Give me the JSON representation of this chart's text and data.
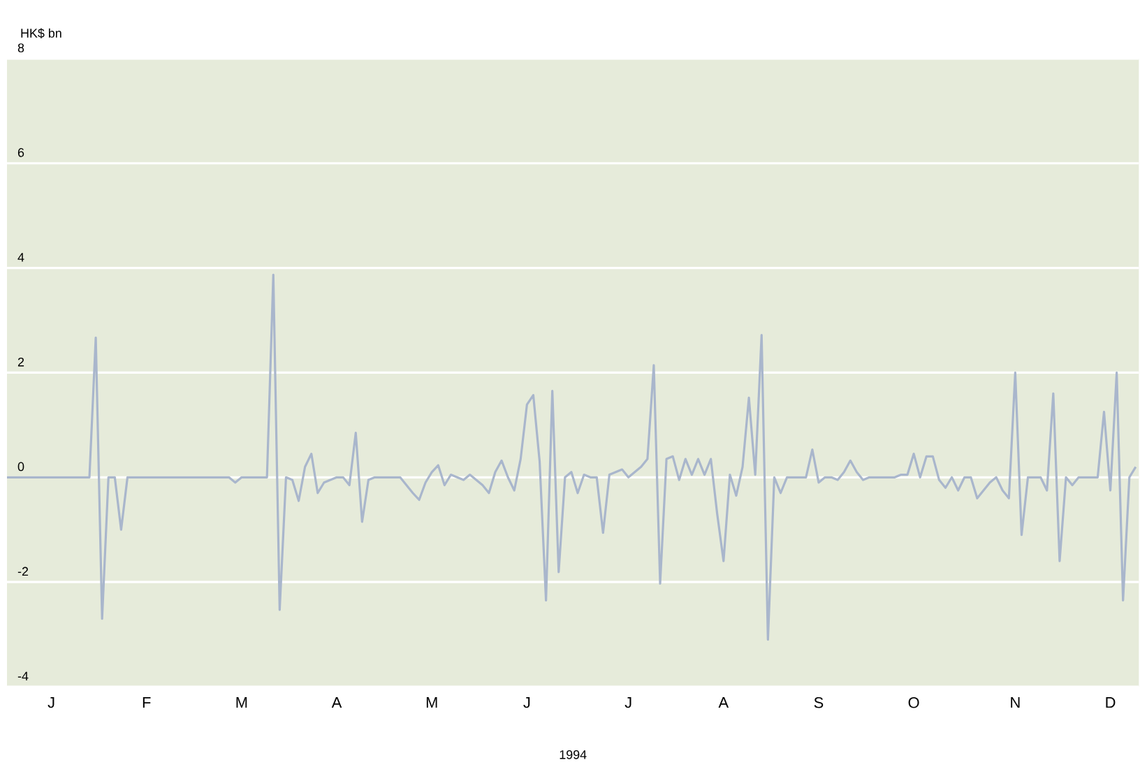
{
  "chart_data": {
    "type": "line",
    "ylabel": "HK$ bn",
    "xlabel": "1994",
    "color": "#a9b6cc",
    "grid": "y",
    "marker": "none",
    "line_style": "solid",
    "ylim": [
      -4,
      8
    ],
    "yticks": [
      -4,
      -2,
      0,
      2,
      4,
      6,
      8
    ],
    "categories": [
      null,
      null,
      null,
      null,
      null,
      null,
      null,
      "J",
      null,
      null,
      null,
      null,
      null,
      null,
      null,
      null,
      null,
      null,
      null,
      null,
      null,
      null,
      "F",
      null,
      null,
      null,
      null,
      null,
      null,
      null,
      null,
      null,
      null,
      null,
      null,
      null,
      null,
      "M",
      null,
      null,
      null,
      null,
      null,
      null,
      null,
      null,
      null,
      null,
      null,
      null,
      null,
      null,
      "A",
      null,
      null,
      null,
      null,
      null,
      null,
      null,
      null,
      null,
      null,
      null,
      null,
      null,
      null,
      "M",
      null,
      null,
      null,
      null,
      null,
      null,
      null,
      null,
      null,
      null,
      null,
      null,
      null,
      null,
      "J",
      null,
      null,
      null,
      null,
      null,
      null,
      null,
      null,
      null,
      null,
      null,
      null,
      null,
      null,
      null,
      "J",
      null,
      null,
      null,
      null,
      null,
      null,
      null,
      null,
      null,
      null,
      null,
      null,
      null,
      null,
      "A",
      null,
      null,
      null,
      null,
      null,
      null,
      null,
      null,
      null,
      null,
      null,
      null,
      null,
      null,
      "S",
      null,
      null,
      null,
      null,
      null,
      null,
      null,
      null,
      null,
      null,
      null,
      null,
      null,
      null,
      "O",
      null,
      null,
      null,
      null,
      null,
      null,
      null,
      null,
      null,
      null,
      null,
      null,
      null,
      null,
      null,
      "N",
      null,
      null,
      null,
      null,
      null,
      null,
      null,
      null,
      null,
      null,
      null,
      null,
      null,
      null,
      "D",
      null,
      null,
      null,
      null
    ],
    "values": [
      0,
      0,
      0,
      0,
      0,
      0,
      0,
      0,
      0,
      0,
      0,
      0,
      0,
      0,
      2.67,
      -2.7,
      0,
      0,
      -1.0,
      0,
      0,
      0,
      0,
      0,
      0,
      0,
      0,
      0,
      0,
      0,
      0,
      0,
      0,
      0,
      0,
      0,
      -0.1,
      0,
      0,
      0,
      0,
      0,
      3.87,
      -2.53,
      0,
      -0.05,
      -0.45,
      0.2,
      0.45,
      -0.3,
      -0.1,
      -0.05,
      0,
      0,
      -0.15,
      0.85,
      -0.85,
      -0.05,
      0,
      0,
      0,
      0,
      0,
      -0.15,
      -0.3,
      -0.43,
      -0.1,
      0.1,
      0.23,
      -0.15,
      0.05,
      0,
      -0.05,
      0.05,
      -0.05,
      -0.15,
      -0.3,
      0.1,
      0.32,
      0,
      -0.25,
      0.35,
      1.39,
      1.57,
      0.3,
      -2.35,
      1.65,
      -1.81,
      0,
      0.1,
      -0.3,
      0.05,
      0,
      0,
      -1.06,
      0.05,
      0.1,
      0.15,
      0,
      0.1,
      0.2,
      0.35,
      2.14,
      -2.03,
      0.35,
      0.4,
      -0.05,
      0.35,
      0.05,
      0.35,
      0.05,
      0.35,
      -0.7,
      -1.6,
      0.05,
      -0.35,
      0.2,
      1.52,
      0.05,
      2.72,
      -3.1,
      0,
      -0.3,
      0,
      0,
      0,
      0,
      0.53,
      -0.1,
      0,
      0,
      -0.05,
      0.1,
      0.32,
      0.1,
      -0.05,
      0,
      0,
      0,
      0,
      0,
      0.05,
      0.05,
      0.45,
      0,
      0.4,
      0.4,
      -0.05,
      -0.2,
      0,
      -0.25,
      0,
      0,
      -0.4,
      -0.25,
      -0.1,
      0,
      -0.25,
      -0.4,
      2.0,
      -1.1,
      0,
      0,
      0,
      -0.25,
      1.6,
      -1.6,
      0,
      -0.15,
      0,
      0,
      0,
      0,
      1.25,
      -0.25,
      2.0,
      -2.35,
      0,
      0.2
    ]
  }
}
